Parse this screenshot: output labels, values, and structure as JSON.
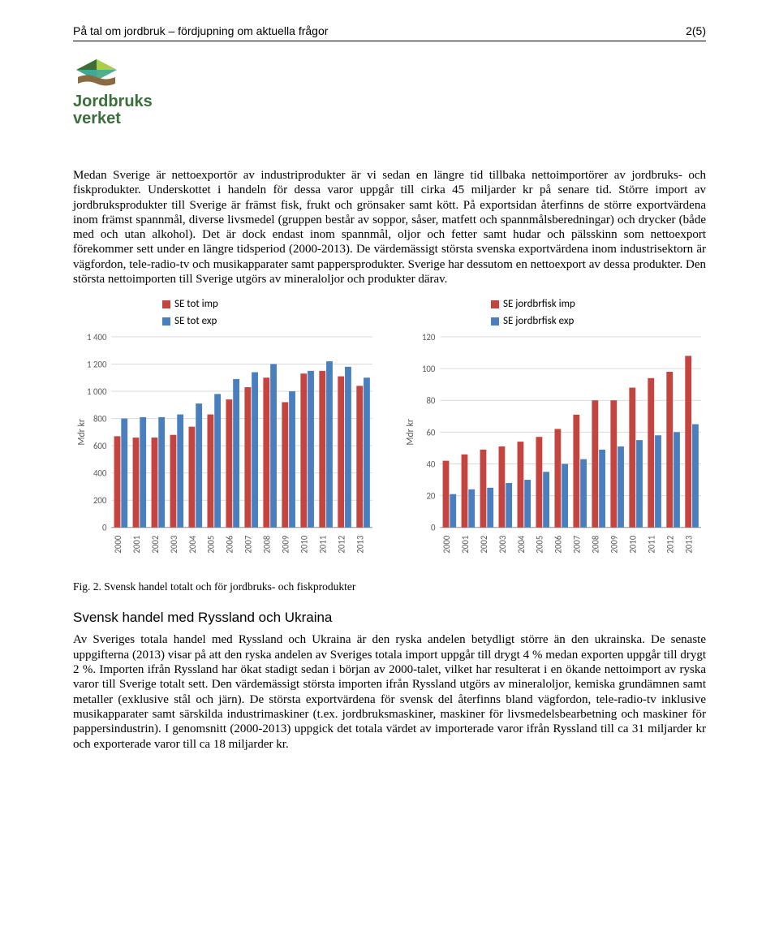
{
  "header": {
    "left": "På tal om jordbruk – fördjupning om aktuella frågor",
    "right": "2(5)"
  },
  "logo": {
    "line1": "Jordbruks",
    "line2": "verket",
    "colors": {
      "dark_green": "#3b6e3b",
      "light_green": "#a9cf4a",
      "teal": "#3fa898",
      "brown": "#8a6a3f"
    }
  },
  "para1": "Medan Sverige är nettoexportör av industriprodukter är vi sedan en längre tid tillbaka nettoimportörer av jordbruks- och fiskprodukter. Underskottet i handeln för dessa varor uppgår till cirka 45 miljarder kr på senare tid. Större import av jordbruksprodukter till Sverige är främst fisk, frukt och grönsaker samt kött. På exportsidan återfinns de större exportvärdena inom främst spannmål, diverse livsmedel (gruppen består av soppor, såser, matfett och spannmålsberedningar) och drycker (både med och utan alkohol). Det är dock endast inom spannmål, oljor och fetter samt hudar och pälsskinn som nettoexport förekommer sett under en längre tidsperiod (2000-2013). De värdemässigt största svenska exportvärdena inom industrisektorn är vägfordon, tele-radio-tv och musikapparater samt pappersprodukter. Sverige har dessutom en nettoexport av dessa produkter. Den största nettoimporten till Sverige utgörs av mineraloljor och produkter därav.",
  "fig_caption": "Fig. 2. Svensk handel totalt och för jordbruks- och fiskprodukter",
  "section_title": "Svensk handel med Ryssland och Ukraina",
  "para2": "Av Sveriges totala handel med Ryssland och Ukraina är den ryska andelen betydligt större än den ukrainska. De senaste uppgifterna (2013) visar på att den ryska andelen av Sveriges totala import uppgår till drygt 4 % medan exporten uppgår till drygt 2 %. Importen ifrån Ryssland har ökat stadigt sedan i början av 2000-talet, vilket har resulterat i en ökande nettoimport av ryska varor till Sverige totalt sett. Den värdemässigt största importen ifrån Ryssland utgörs av mineraloljor, kemiska grundämnen samt metaller (exklusive stål och järn). De största exportvärdena för svensk del återfinns bland vägfordon, tele-radio-tv inklusive musikapparater samt särskilda industrimaskiner (t.ex. jordbruksmaskiner, maskiner för livsmedelsbearbetning och maskiner för pappersindustrin). I genomsnitt (2000-2013) uppgick det totala värdet av importerade varor ifrån Ryssland till ca 31 miljarder kr och exporterade varor till ca 18 miljarder kr.",
  "chart_left": {
    "type": "bar",
    "title": "",
    "ylabel": "Mdr kr",
    "ymax": 1400,
    "ytick_step": 200,
    "categories": [
      "2000",
      "2001",
      "2002",
      "2003",
      "2004",
      "2005",
      "2006",
      "2007",
      "2008",
      "2009",
      "2010",
      "2011",
      "2012",
      "2013"
    ],
    "series": [
      {
        "name": "SE tot imp",
        "color": "#c44440",
        "values": [
          670,
          660,
          660,
          680,
          740,
          830,
          940,
          1030,
          1100,
          920,
          1130,
          1150,
          1110,
          1040
        ]
      },
      {
        "name": "SE tot exp",
        "color": "#4a7fbf",
        "values": [
          800,
          810,
          810,
          830,
          910,
          980,
          1090,
          1140,
          1200,
          1000,
          1150,
          1220,
          1180,
          1100
        ]
      }
    ],
    "axis_color": "#969696",
    "grid_color": "#d9d9d9",
    "font_family": "Calibri, Arial, sans-serif",
    "tick_fontsize": 11,
    "label_fontsize": 12
  },
  "chart_right": {
    "type": "bar",
    "ylabel": "Mdr kr",
    "ymax": 120,
    "ytick_step": 20,
    "categories": [
      "2000",
      "2001",
      "2002",
      "2003",
      "2004",
      "2005",
      "2006",
      "2007",
      "2008",
      "2009",
      "2010",
      "2011",
      "2012",
      "2013"
    ],
    "series": [
      {
        "name": "SE jordbrfisk imp",
        "color": "#c44440",
        "values": [
          42,
          46,
          49,
          51,
          54,
          57,
          62,
          71,
          80,
          80,
          88,
          94,
          98,
          108
        ]
      },
      {
        "name": "SE jordbrfisk exp",
        "color": "#4a7fbf",
        "values": [
          21,
          24,
          25,
          28,
          30,
          35,
          40,
          43,
          49,
          51,
          55,
          58,
          60,
          65
        ]
      }
    ],
    "axis_color": "#969696",
    "grid_color": "#d9d9d9",
    "font_family": "Calibri, Arial, sans-serif",
    "tick_fontsize": 11,
    "label_fontsize": 12
  }
}
